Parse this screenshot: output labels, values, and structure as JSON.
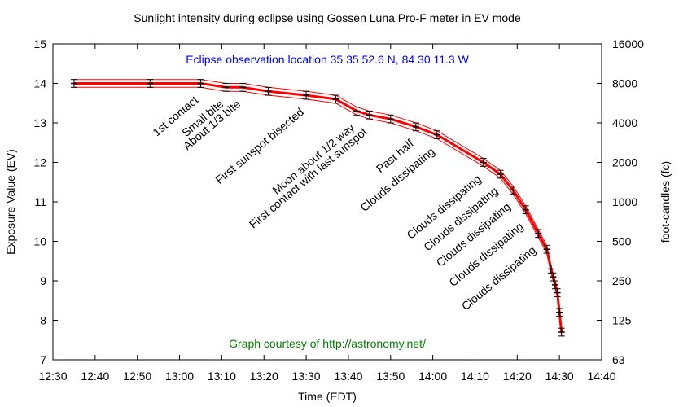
{
  "chart_data": {
    "type": "line",
    "title": "Sunlight intensity during eclipse using Gossen Luna Pro-F meter in EV mode",
    "subtitle": "Eclipse observation location 35 35 52.6 N, 84 30 11.3 W",
    "credit": "Graph courtesy of http://astronomy.net/",
    "xlabel": "Time (EDT)",
    "ylabel": "Exposure Value (EV)",
    "y2label": "foot-candles (fc)",
    "xlim": [
      "12:30",
      "14:40"
    ],
    "ylim": [
      7,
      15
    ],
    "x_ticks": [
      "12:30",
      "12:40",
      "12:50",
      "13:00",
      "13:10",
      "13:20",
      "13:30",
      "13:40",
      "13:50",
      "14:00",
      "14:10",
      "14:20",
      "14:30",
      "14:40"
    ],
    "y_ticks": [
      7,
      8,
      9,
      10,
      11,
      12,
      13,
      14,
      15
    ],
    "y2_ticks": [
      {
        "ev": 7,
        "label": "63"
      },
      {
        "ev": 8,
        "label": "125"
      },
      {
        "ev": 9,
        "label": "250"
      },
      {
        "ev": 10,
        "label": "500"
      },
      {
        "ev": 11,
        "label": "1000"
      },
      {
        "ev": 12,
        "label": "2000"
      },
      {
        "ev": 13,
        "label": "4000"
      },
      {
        "ev": 14,
        "label": "8000"
      },
      {
        "ev": 15,
        "label": "16000"
      }
    ],
    "grid": false,
    "error_band": 0.1,
    "colors": {
      "line": "#ff0000",
      "errorbar": "#000000",
      "title": "#000000",
      "subtitle": "#0000ff",
      "credit": "#008000"
    },
    "series": [
      {
        "points": [
          {
            "x": "12:35",
            "y": 14.0
          },
          {
            "x": "12:53",
            "y": 14.0
          },
          {
            "x": "13:05",
            "y": 14.0
          },
          {
            "x": "13:11",
            "y": 13.9
          },
          {
            "x": "13:15",
            "y": 13.9
          },
          {
            "x": "13:21",
            "y": 13.8
          },
          {
            "x": "13:30",
            "y": 13.7
          },
          {
            "x": "13:37",
            "y": 13.6
          },
          {
            "x": "13:42",
            "y": 13.3
          },
          {
            "x": "13:45",
            "y": 13.2
          },
          {
            "x": "13:50",
            "y": 13.1
          },
          {
            "x": "13:56",
            "y": 12.9
          },
          {
            "x": "14:01",
            "y": 12.7
          },
          {
            "x": "14:12",
            "y": 12.0
          },
          {
            "x": "14:16",
            "y": 11.7
          },
          {
            "x": "14:19",
            "y": 11.3
          },
          {
            "x": "14:22",
            "y": 10.8
          },
          {
            "x": "14:25",
            "y": 10.2
          },
          {
            "x": "14:27",
            "y": 9.8
          },
          {
            "x": "14:28",
            "y": 9.3
          },
          {
            "x": "14:28.5",
            "y": 9.1
          },
          {
            "x": "14:29",
            "y": 8.9
          },
          {
            "x": "14:29.5",
            "y": 8.7
          },
          {
            "x": "14:30",
            "y": 8.2
          },
          {
            "x": "14:30.5",
            "y": 7.7
          }
        ]
      }
    ],
    "annotations": [
      {
        "text": "1st contact",
        "x": "13:05",
        "y": 14.0
      },
      {
        "text": "Small bite",
        "x": "13:11",
        "y": 13.9
      },
      {
        "text": "About 1/3 bite",
        "x": "13:15",
        "y": 13.9
      },
      {
        "text": "First sunspot bisected",
        "x": "13:30",
        "y": 13.7
      },
      {
        "text": "Moon about 1/2 way",
        "x": "13:42",
        "y": 13.3
      },
      {
        "text": "First contact with last sunspot",
        "x": "13:45",
        "y": 13.2
      },
      {
        "text": "Past half",
        "x": "13:56",
        "y": 12.9
      },
      {
        "text": "Clouds dissipating",
        "x": "14:01",
        "y": 12.7
      },
      {
        "text": "Clouds dissipating",
        "x": "14:12",
        "y": 12.0
      },
      {
        "text": "Clouds dissipating",
        "x": "14:16",
        "y": 11.7
      },
      {
        "text": "Clouds dissipating",
        "x": "14:19",
        "y": 11.3
      },
      {
        "text": "Clouds dissipating",
        "x": "14:22",
        "y": 10.8
      },
      {
        "text": "Clouds dissipating",
        "x": "14:25",
        "y": 10.2
      }
    ]
  }
}
